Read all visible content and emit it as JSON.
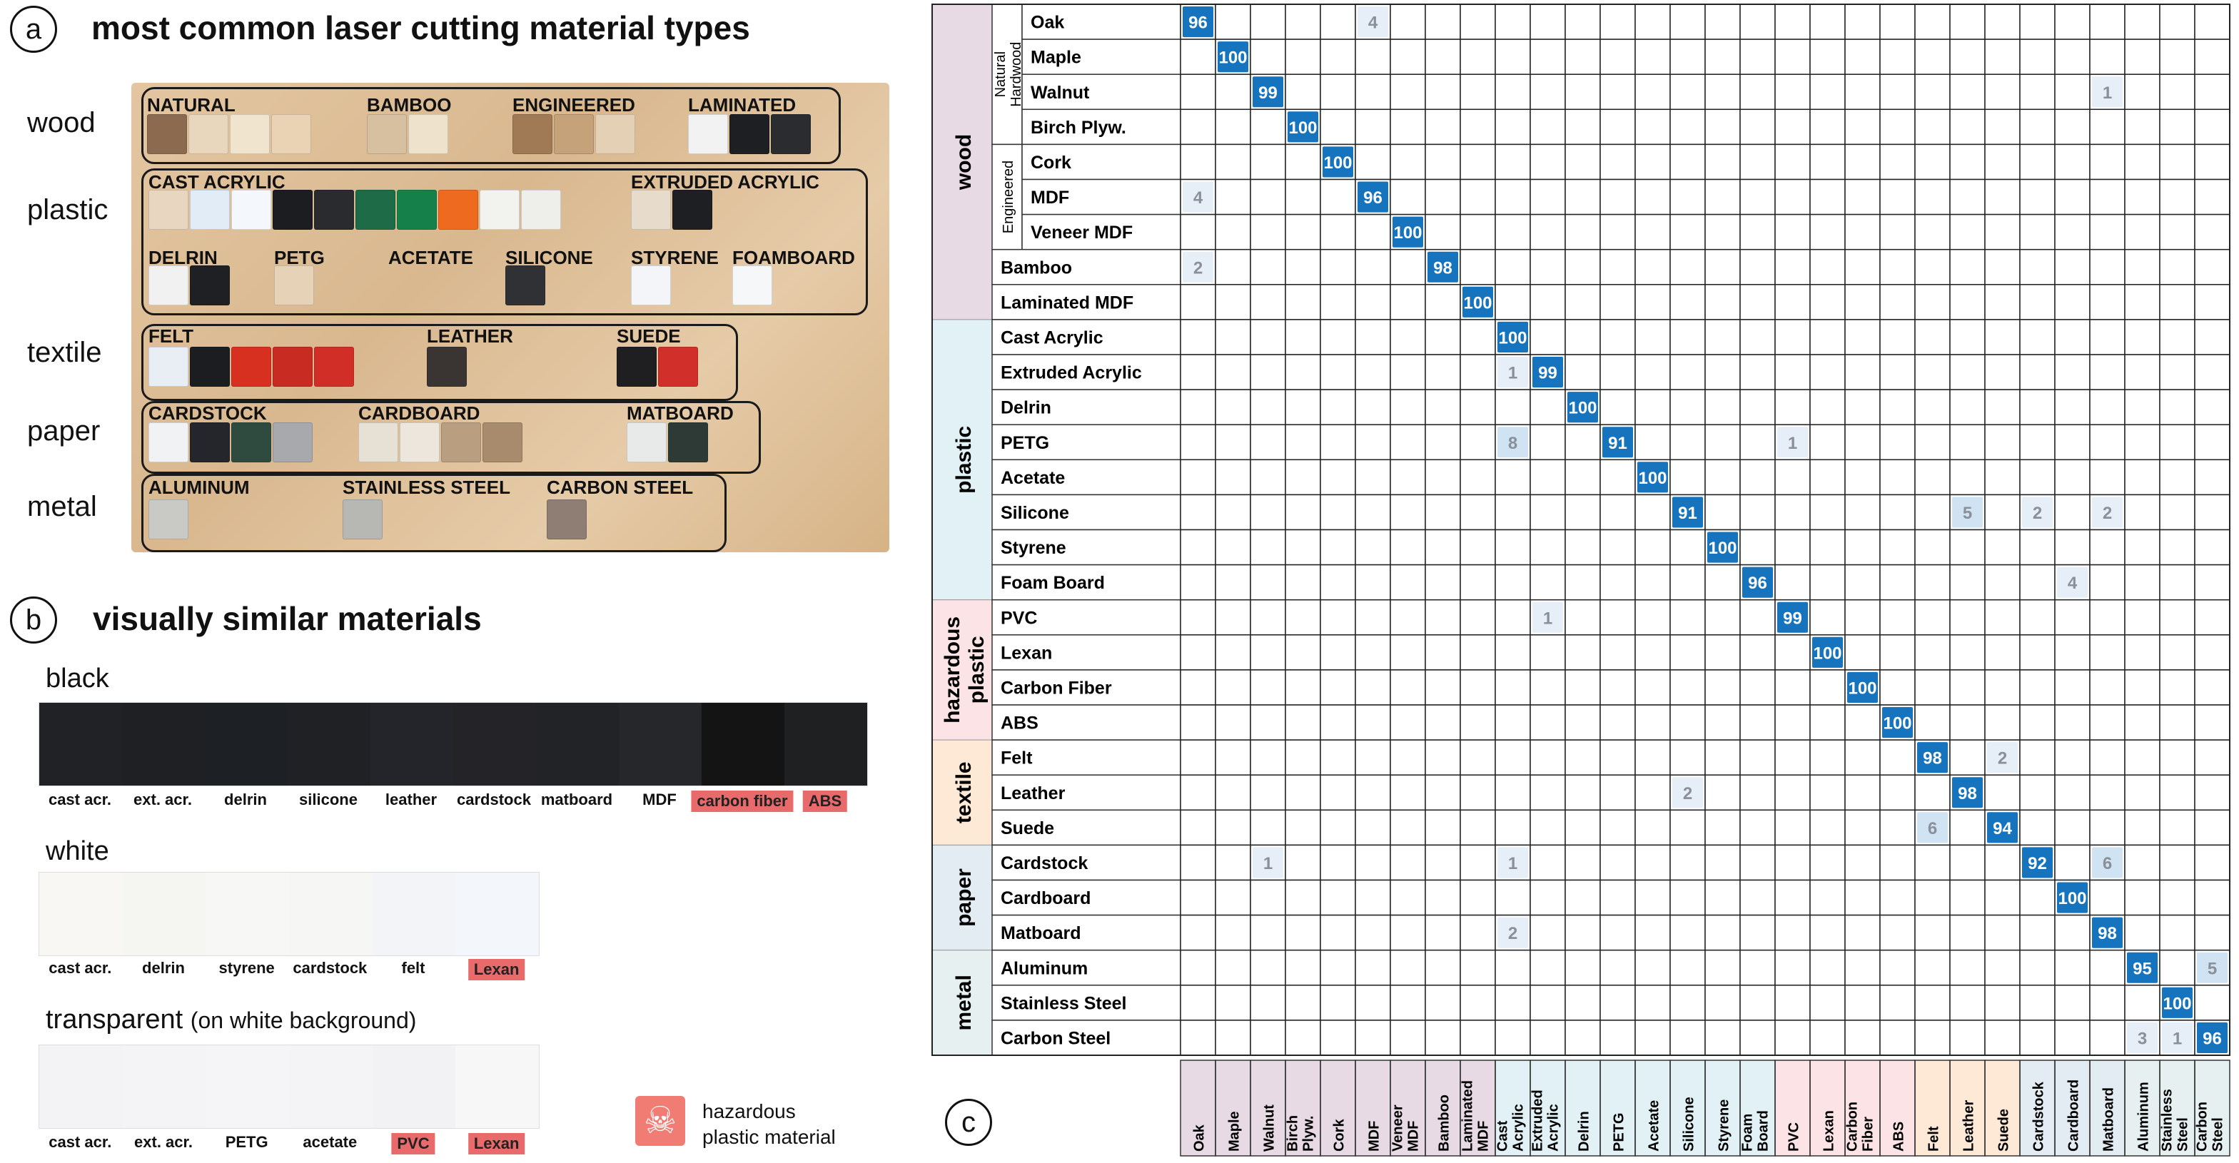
{
  "panel_a": {
    "letter": "a",
    "title": "most common laser cutting material types",
    "rows": [
      {
        "label": "wood",
        "groups": [
          {
            "label": "NATURAL",
            "swatches": [
              "#8b6a4f",
              "#e8d7bd",
              "#f1e4cf",
              "#e9d3b4"
            ]
          },
          {
            "label": "BAMBOO",
            "swatches": [
              "#d7c0a0",
              "#efe2cc"
            ]
          },
          {
            "label": "ENGINEERED",
            "swatches": [
              "#9f7a55",
              "#c5a27a",
              "#e4d1b5"
            ]
          },
          {
            "label": "LAMINATED",
            "swatches": [
              "#f2f2f2",
              "#1d1f22",
              "#2a2c30"
            ]
          }
        ]
      },
      {
        "label": "plastic",
        "groups": [
          {
            "label": "CAST ACRYLIC",
            "swatches": [
              "#e8d6c0",
              "#e2ecf6",
              "#f4f7fb",
              "#1c1d20",
              "#2a2b2e",
              "#1e6b48",
              "#16804a",
              "#ee6a1f",
              "#f2f2ee",
              "#eeeeea"
            ]
          },
          {
            "label": "EXTRUDED ACRYLIC",
            "swatches": [
              "#e7dccb",
              "#1e1f22"
            ]
          },
          {
            "label": "DELRIN",
            "swatches": [
              "#f1f1f1",
              "#1f2023"
            ]
          },
          {
            "label": "PETG",
            "swatches": [
              "#e5d2b7"
            ]
          },
          {
            "label": "ACETATE",
            "swatches": []
          },
          {
            "label": "SILICONE",
            "swatches": [
              "#2f3134"
            ]
          },
          {
            "label": "STYRENE",
            "swatches": [
              "#f3f5f8"
            ]
          },
          {
            "label": "FOAMBOARD",
            "swatches": [
              "#f6f7f9"
            ]
          }
        ]
      },
      {
        "label": "textile",
        "groups": [
          {
            "label": "FELT",
            "swatches": [
              "#e9eef5",
              "#1c1d20",
              "#d83020",
              "#c72b22",
              "#d12e28"
            ]
          },
          {
            "label": "LEATHER",
            "swatches": [
              "#3a3532"
            ]
          },
          {
            "label": "SUEDE",
            "swatches": [
              "#1f1f22",
              "#d1302a"
            ]
          }
        ]
      },
      {
        "label": "paper",
        "groups": [
          {
            "label": "CARDSTOCK",
            "swatches": [
              "#f1f2f4",
              "#25262c",
              "#2f4a3e",
              "#a7a9ad"
            ]
          },
          {
            "label": "CARDBOARD",
            "swatches": [
              "#e7e0d4",
              "#ece6dc",
              "#b99f80",
              "#a78b6c"
            ]
          },
          {
            "label": "MATBOARD",
            "swatches": [
              "#e8eaea",
              "#2e3a35"
            ]
          }
        ]
      },
      {
        "label": "metal",
        "groups": [
          {
            "label": "ALUMINUM",
            "swatches": [
              "#c9c9c6"
            ]
          },
          {
            "label": "STAINLESS STEEL",
            "swatches": [
              "#b7b7b4"
            ]
          },
          {
            "label": "CARBON STEEL",
            "swatches": [
              "#8e7e74"
            ]
          }
        ]
      }
    ]
  },
  "panel_b": {
    "letter": "b",
    "title": "visually similar materials",
    "strips": [
      {
        "title": "black",
        "title_note": "",
        "colors": [
          "#202226",
          "#1e2024",
          "#1d2025",
          "#1f2125",
          "#23252a",
          "#242428",
          "#222326",
          "#26272a",
          "#141414",
          "#1f2022"
        ],
        "labels": [
          "cast acr.",
          "ext. acr.",
          "delrin",
          "silicone",
          "leather",
          "cardstock",
          "matboard",
          "MDF",
          "carbon fiber",
          "ABS"
        ],
        "hazardous": [
          false,
          false,
          false,
          false,
          false,
          false,
          false,
          false,
          true,
          true
        ]
      },
      {
        "title": "white",
        "title_note": "",
        "colors": [
          "#f8f7f3",
          "#f5f5f1",
          "#f7f7f5",
          "#f6f6f4",
          "#f2f4f8",
          "#f3f6fa"
        ],
        "labels": [
          "cast acr.",
          "delrin",
          "styrene",
          "cardstock",
          "felt",
          "Lexan"
        ],
        "hazardous": [
          false,
          false,
          false,
          false,
          false,
          true
        ]
      },
      {
        "title": "transparent",
        "title_note": "(on white background)",
        "colors": [
          "#f3f3f6",
          "#f4f4f7",
          "#f5f5f7",
          "#f4f4f6",
          "#f2f2f5",
          "#f8f7f7"
        ],
        "labels": [
          "cast acr.",
          "ext. acr.",
          "PETG",
          "acetate",
          "PVC",
          "Lexan"
        ],
        "hazardous": [
          false,
          false,
          false,
          false,
          true,
          true
        ]
      }
    ],
    "legend": {
      "icon": "skull-icon",
      "line1": "hazardous",
      "line2": "plastic material",
      "color": "#f07c74"
    }
  },
  "panel_c": {
    "letter": "c"
  },
  "chart_data": {
    "type": "heatmap",
    "title": "",
    "materials": [
      "Oak",
      "Maple",
      "Walnut",
      "Birch Plyw.",
      "Cork",
      "MDF",
      "Veneer MDF",
      "Bamboo",
      "Laminated MDF",
      "Cast Acrylic",
      "Extruded Acrylic",
      "Delrin",
      "PETG",
      "Acetate",
      "Silicone",
      "Styrene",
      "Foam Board",
      "PVC",
      "Lexan",
      "Carbon Fiber",
      "ABS",
      "Felt",
      "Leather",
      "Suede",
      "Cardstock",
      "Cardboard",
      "Matboard",
      "Aluminum",
      "Stainless Steel",
      "Carbon Steel"
    ],
    "column_labels": [
      "Oak",
      "Maple",
      "Walnut",
      "Birch Plyw.",
      "Cork",
      "MDF",
      "Veneer MDF",
      "Bamboo",
      "Laminated MDF",
      "Cast Acrylic",
      "Extruded Acrylic",
      "Delrin",
      "PETG",
      "Acetate",
      "Silicone",
      "Styrene",
      "Foam Board",
      "PVC",
      "Lexan",
      "Carbon Fiber",
      "ABS",
      "Felt",
      "Leather",
      "Suede",
      "Cardstock",
      "Cardboard",
      "Matboard",
      "Aluminum",
      "Stainless Steel",
      "Carbon Steel"
    ],
    "categories": [
      {
        "name": "wood",
        "count": 9,
        "color": "#e7dae4"
      },
      {
        "name": "plastic",
        "count": 8,
        "color": "#e2f1f6"
      },
      {
        "name": "hazardous plastic",
        "count": 4,
        "color": "#fbe3e6"
      },
      {
        "name": "textile",
        "count": 3,
        "color": "#fde9d6"
      },
      {
        "name": "paper",
        "count": 3,
        "color": "#e3ecf2"
      },
      {
        "name": "metal",
        "count": 3,
        "color": "#e7f0f0"
      }
    ],
    "subgroups": [
      {
        "name": "Natural Hardwood",
        "start": 0,
        "count": 4
      },
      {
        "name": "Engineered",
        "start": 4,
        "count": 3
      }
    ],
    "diag_color": "#1673bd",
    "cells": [
      [
        0,
        0,
        96
      ],
      [
        0,
        5,
        4
      ],
      [
        1,
        1,
        100
      ],
      [
        2,
        2,
        99
      ],
      [
        2,
        26,
        1
      ],
      [
        3,
        3,
        100
      ],
      [
        4,
        4,
        100
      ],
      [
        5,
        0,
        4
      ],
      [
        5,
        5,
        96
      ],
      [
        6,
        6,
        100
      ],
      [
        7,
        0,
        2
      ],
      [
        7,
        7,
        98
      ],
      [
        8,
        8,
        100
      ],
      [
        9,
        9,
        100
      ],
      [
        10,
        9,
        1
      ],
      [
        10,
        10,
        99
      ],
      [
        11,
        11,
        100
      ],
      [
        12,
        9,
        8
      ],
      [
        12,
        12,
        91
      ],
      [
        12,
        17,
        1
      ],
      [
        13,
        13,
        100
      ],
      [
        14,
        14,
        91
      ],
      [
        14,
        22,
        5
      ],
      [
        14,
        24,
        2
      ],
      [
        14,
        26,
        2
      ],
      [
        15,
        15,
        100
      ],
      [
        16,
        16,
        96
      ],
      [
        16,
        25,
        4
      ],
      [
        17,
        10,
        1
      ],
      [
        17,
        17,
        99
      ],
      [
        18,
        18,
        100
      ],
      [
        19,
        19,
        100
      ],
      [
        20,
        20,
        100
      ],
      [
        21,
        21,
        98
      ],
      [
        21,
        23,
        2
      ],
      [
        22,
        14,
        2
      ],
      [
        22,
        22,
        98
      ],
      [
        23,
        21,
        6
      ],
      [
        23,
        23,
        94
      ],
      [
        24,
        2,
        1
      ],
      [
        24,
        9,
        1
      ],
      [
        24,
        24,
        92
      ],
      [
        24,
        26,
        6
      ],
      [
        25,
        25,
        100
      ],
      [
        26,
        9,
        2
      ],
      [
        26,
        26,
        98
      ],
      [
        27,
        27,
        95
      ],
      [
        27,
        29,
        5
      ],
      [
        28,
        28,
        100
      ],
      [
        29,
        27,
        3
      ],
      [
        29,
        28,
        1
      ],
      [
        29,
        29,
        96
      ]
    ]
  }
}
